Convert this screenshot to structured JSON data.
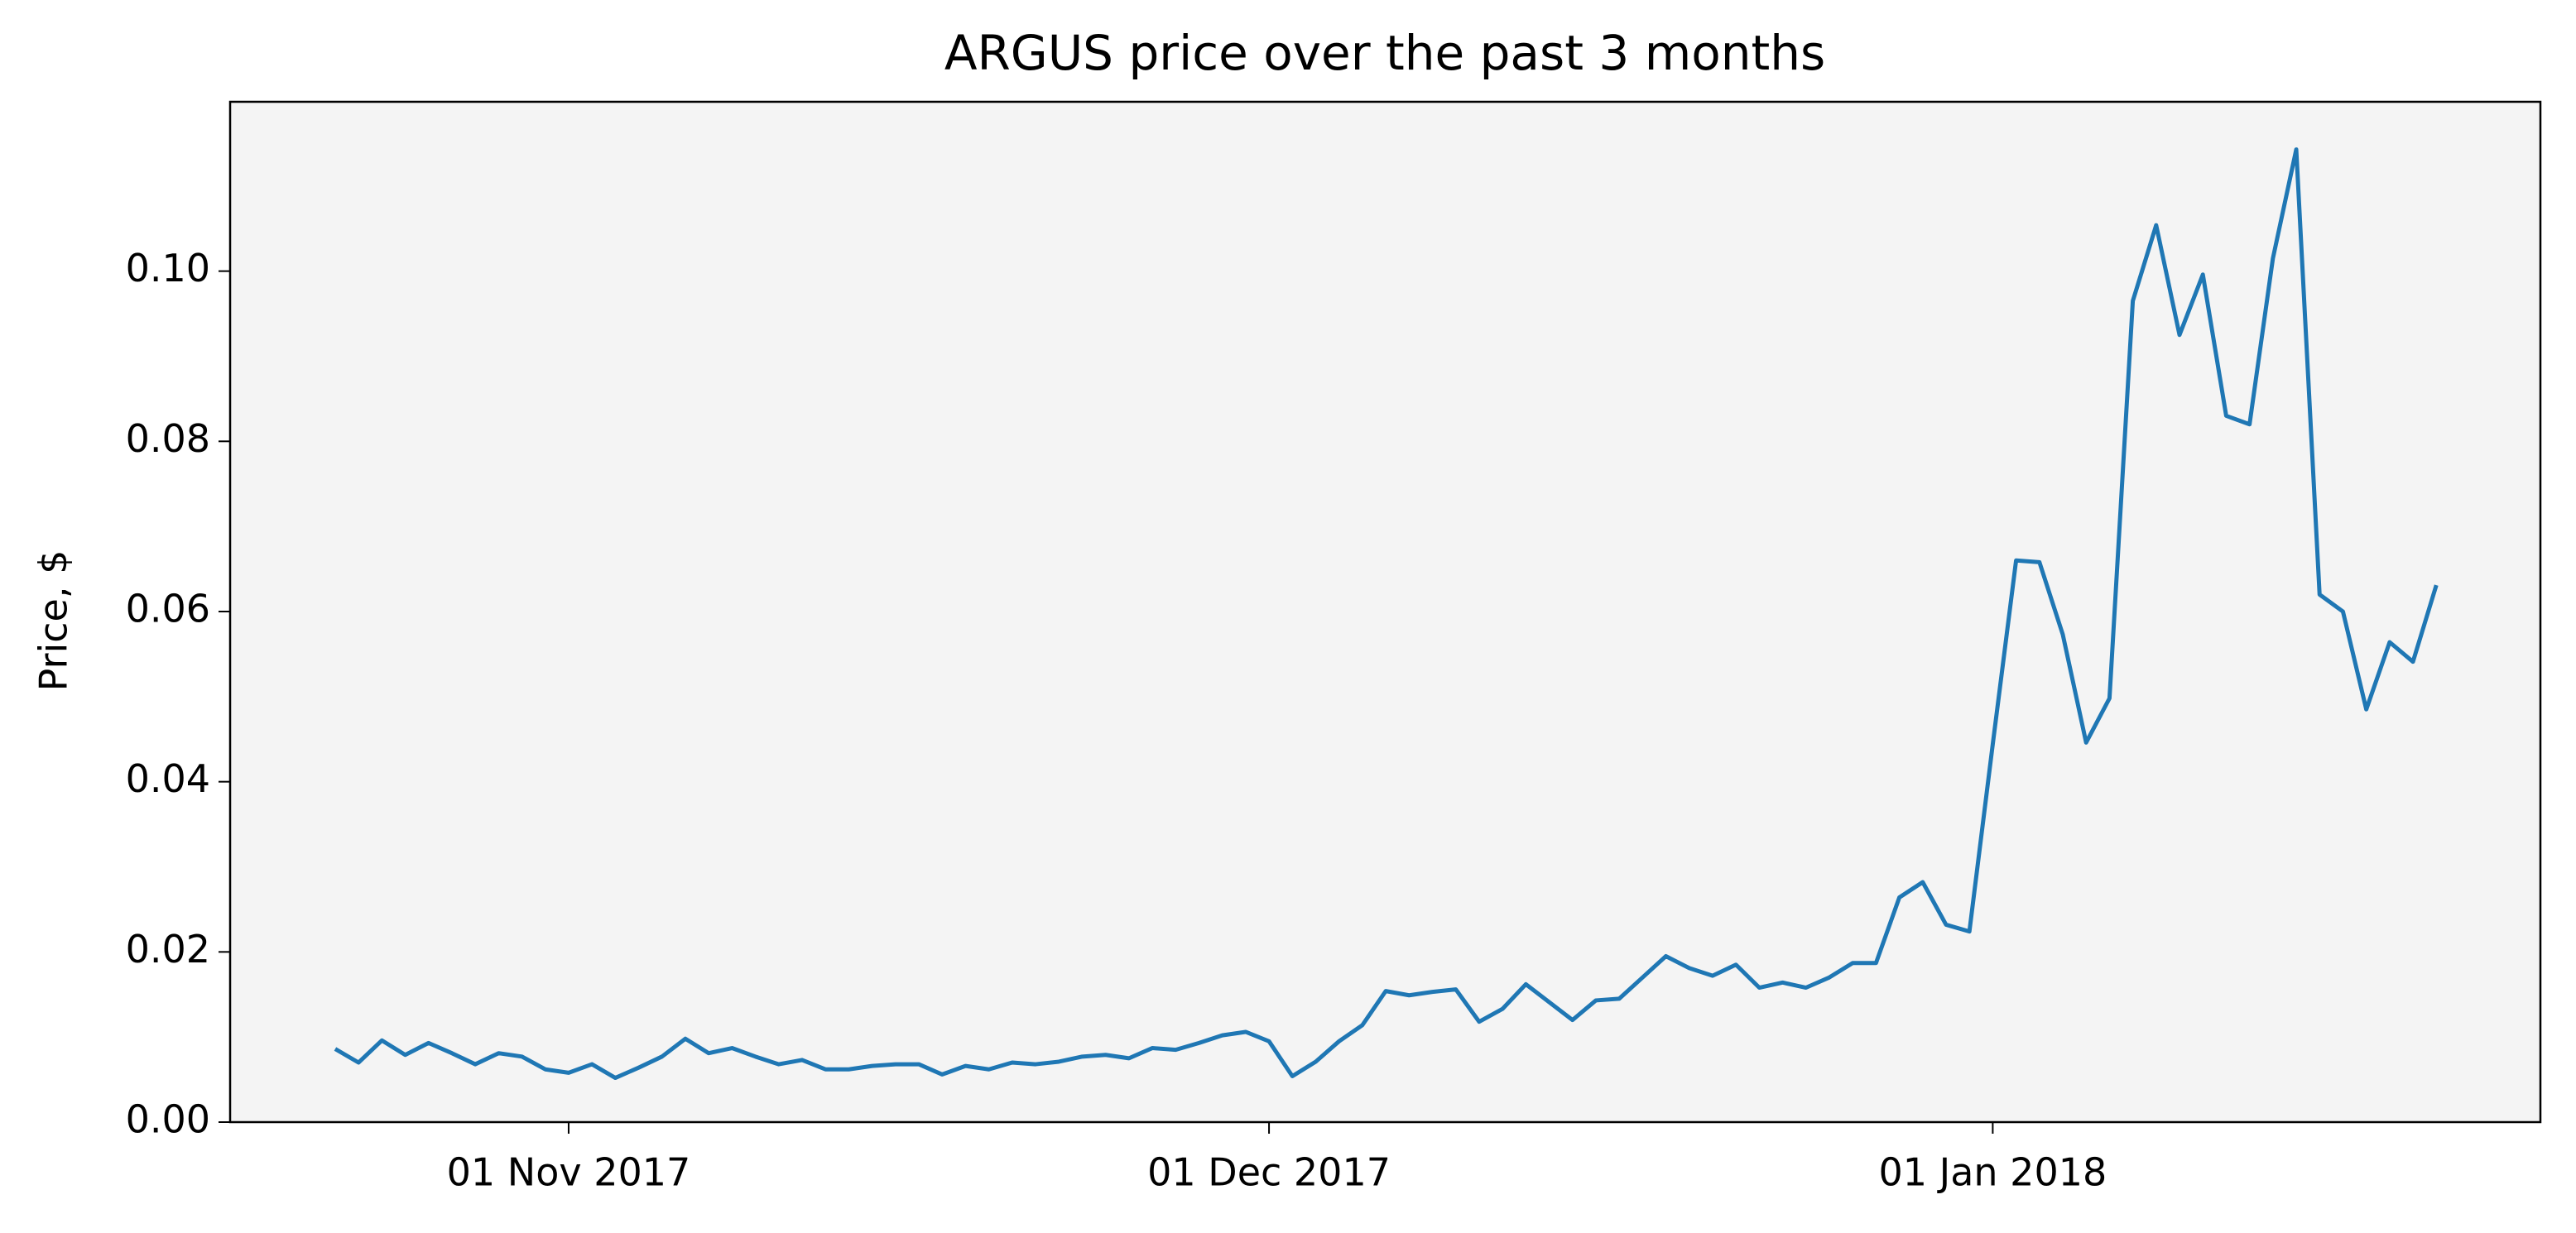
{
  "chart_data": {
    "type": "line",
    "title": "ARGUS price over the past 3 months",
    "y_label": "Price, $",
    "x": [
      "2017-10-22",
      "2017-10-23",
      "2017-10-24",
      "2017-10-25",
      "2017-10-26",
      "2017-10-27",
      "2017-10-28",
      "2017-10-29",
      "2017-10-30",
      "2017-10-31",
      "2017-11-01",
      "2017-11-02",
      "2017-11-03",
      "2017-11-04",
      "2017-11-05",
      "2017-11-06",
      "2017-11-07",
      "2017-11-08",
      "2017-11-09",
      "2017-11-10",
      "2017-11-11",
      "2017-11-12",
      "2017-11-13",
      "2017-11-14",
      "2017-11-15",
      "2017-11-16",
      "2017-11-17",
      "2017-11-18",
      "2017-11-19",
      "2017-11-20",
      "2017-11-21",
      "2017-11-22",
      "2017-11-23",
      "2017-11-24",
      "2017-11-25",
      "2017-11-26",
      "2017-11-27",
      "2017-11-28",
      "2017-11-29",
      "2017-11-30",
      "2017-12-01",
      "2017-12-02",
      "2017-12-03",
      "2017-12-04",
      "2017-12-05",
      "2017-12-06",
      "2017-12-07",
      "2017-12-08",
      "2017-12-09",
      "2017-12-10",
      "2017-12-11",
      "2017-12-12",
      "2017-12-13",
      "2017-12-14",
      "2017-12-15",
      "2017-12-16",
      "2017-12-17",
      "2017-12-18",
      "2017-12-19",
      "2017-12-20",
      "2017-12-21",
      "2017-12-22",
      "2017-12-23",
      "2017-12-24",
      "2017-12-25",
      "2017-12-26",
      "2017-12-27",
      "2017-12-28",
      "2017-12-29",
      "2017-12-30",
      "2017-12-31",
      "2018-01-01",
      "2018-01-02",
      "2018-01-03",
      "2018-01-04",
      "2018-01-05",
      "2018-01-06",
      "2018-01-07",
      "2018-01-08",
      "2018-01-09",
      "2018-01-10",
      "2018-01-11",
      "2018-01-12",
      "2018-01-13",
      "2018-01-14",
      "2018-01-15",
      "2018-01-16",
      "2018-01-17",
      "2018-01-18",
      "2018-01-19",
      "2018-01-20"
    ],
    "series": [
      {
        "color": "#1f77b4",
        "values": [
          0.0086,
          0.007,
          0.0096,
          0.0079,
          0.0093,
          0.0081,
          0.0068,
          0.0081,
          0.0077,
          0.0062,
          0.0058,
          0.0068,
          0.0052,
          0.0064,
          0.0077,
          0.0098,
          0.0081,
          0.0087,
          0.0077,
          0.0068,
          0.0073,
          0.0062,
          0.0062,
          0.0066,
          0.0068,
          0.0068,
          0.0056,
          0.0066,
          0.0062,
          0.007,
          0.0068,
          0.0071,
          0.0077,
          0.0079,
          0.0075,
          0.0087,
          0.0085,
          0.0093,
          0.0102,
          0.0106,
          0.0095,
          0.0054,
          0.0071,
          0.0095,
          0.0114,
          0.0154,
          0.0149,
          0.0153,
          0.0156,
          0.0118,
          0.0133,
          0.0162,
          0.0141,
          0.012,
          0.0143,
          0.0145,
          0.017,
          0.0195,
          0.0181,
          0.0172,
          0.0185,
          0.0158,
          0.0164,
          0.0158,
          0.017,
          0.0187,
          0.0187,
          0.0264,
          0.0282,
          0.0232,
          0.0224,
          0.0444,
          0.066,
          0.0658,
          0.0573,
          0.0446,
          0.0498,
          0.0965,
          0.1054,
          0.0925,
          0.0996,
          0.083,
          0.082,
          0.1015,
          0.1143,
          0.062,
          0.06,
          0.0485,
          0.0564,
          0.0541,
          0.0631
        ]
      }
    ],
    "xlim": [
      "2017-10-17T12:00:00Z",
      "2018-01-24T11:00:00Z"
    ],
    "xticks": [
      {
        "value": "2017-11-01",
        "label": "01 Nov 2017"
      },
      {
        "value": "2017-12-01",
        "label": "01 Dec 2017"
      },
      {
        "value": "2018-01-01",
        "label": "01 Jan 2018"
      }
    ],
    "ylim": [
      0,
      0.1199
    ],
    "yticks": [
      {
        "value": 0,
        "label": "0.00"
      },
      0.02,
      0.04,
      0.06,
      0.08,
      {
        "value": 0.1,
        "label": "0.10"
      }
    ],
    "background": "#f4f4f4"
  }
}
